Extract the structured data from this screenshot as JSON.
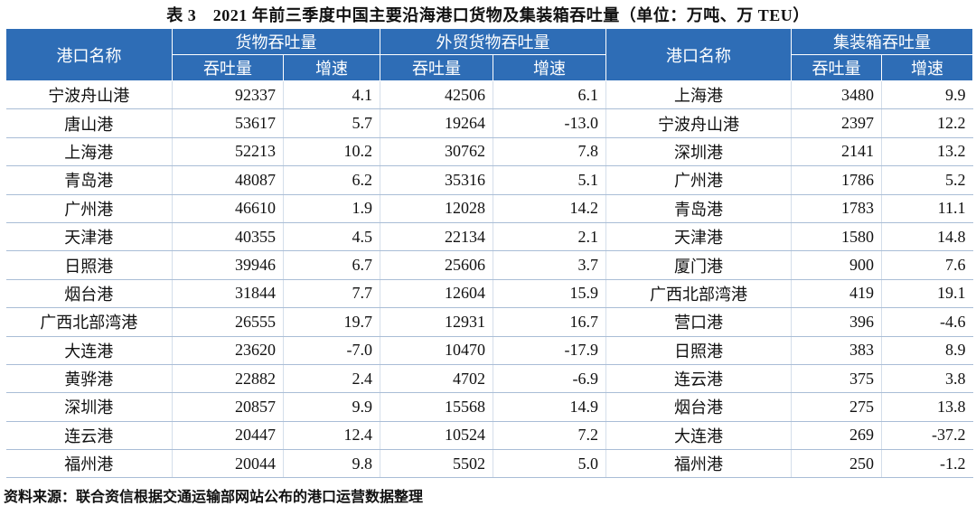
{
  "title": "表 3　2021 年前三季度中国主要沿海港口货物及集装箱吞吐量（单位：万吨、万 TEU）",
  "table": {
    "header_rows": [
      [
        "港口名称",
        "货物吞吐量",
        "外贸货物吞吐量",
        "港口名称",
        "集装箱吞吐量"
      ],
      [
        "吞吐量",
        "增速",
        "吞吐量",
        "增速",
        "吞吐量",
        "增速"
      ]
    ],
    "rows": [
      [
        "宁波舟山港",
        "92337",
        "4.1",
        "42506",
        "6.1",
        "上海港",
        "3480",
        "9.9"
      ],
      [
        "唐山港",
        "53617",
        "5.7",
        "19264",
        "-13.0",
        "宁波舟山港",
        "2397",
        "12.2"
      ],
      [
        "上海港",
        "52213",
        "10.2",
        "30762",
        "7.8",
        "深圳港",
        "2141",
        "13.2"
      ],
      [
        "青岛港",
        "48087",
        "6.2",
        "35316",
        "5.1",
        "广州港",
        "1786",
        "5.2"
      ],
      [
        "广州港",
        "46610",
        "1.9",
        "12028",
        "14.2",
        "青岛港",
        "1783",
        "11.1"
      ],
      [
        "天津港",
        "40355",
        "4.5",
        "22134",
        "2.1",
        "天津港",
        "1580",
        "14.8"
      ],
      [
        "日照港",
        "39946",
        "6.7",
        "25606",
        "3.7",
        "厦门港",
        "900",
        "7.6"
      ],
      [
        "烟台港",
        "31844",
        "7.7",
        "12604",
        "15.9",
        "广西北部湾港",
        "419",
        "19.1"
      ],
      [
        "广西北部湾港",
        "26555",
        "19.7",
        "12931",
        "16.7",
        "营口港",
        "396",
        "-4.6"
      ],
      [
        "大连港",
        "23620",
        "-7.0",
        "10470",
        "-17.9",
        "日照港",
        "383",
        "8.9"
      ],
      [
        "黄骅港",
        "22882",
        "2.4",
        "4702",
        "-6.9",
        "连云港",
        "375",
        "3.8"
      ],
      [
        "深圳港",
        "20857",
        "9.9",
        "15568",
        "14.9",
        "烟台港",
        "275",
        "13.8"
      ],
      [
        "连云港",
        "20447",
        "12.4",
        "10524",
        "7.2",
        "大连港",
        "269",
        "-37.2"
      ],
      [
        "福州港",
        "20044",
        "9.8",
        "5502",
        "5.0",
        "福州港",
        "250",
        "-1.2"
      ]
    ]
  },
  "source": "资料来源：联合资信根据交通运输部网站公布的港口运营数据整理"
}
